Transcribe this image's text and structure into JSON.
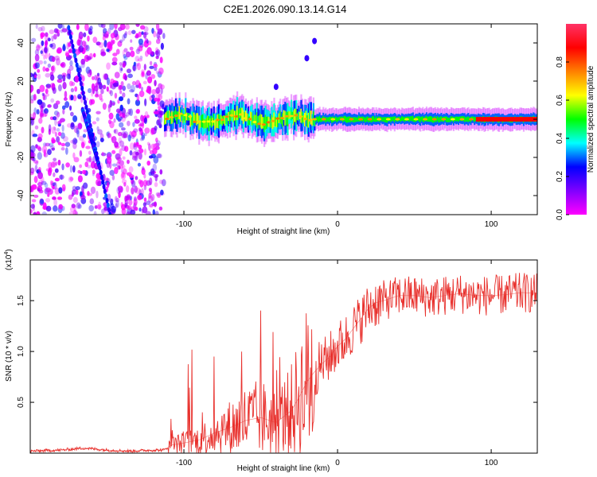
{
  "title": "C2E1.2026.090.13.14.G14",
  "colors": {
    "snr_line": "#e8302c",
    "spectrogram_background": "#ffffff"
  },
  "chart_data": [
    {
      "type": "heatmap",
      "name": "spectrogram",
      "xlabel": "Height of straight line (km)",
      "ylabel": "Frequency (Hz)",
      "xlim": [
        -200,
        130
      ],
      "ylim": [
        -50,
        50
      ],
      "xticks": [
        -100,
        0,
        100
      ],
      "yticks": [
        -40,
        -20,
        0,
        20,
        40
      ],
      "colorbar": {
        "label": "Normalized spectral amplitude",
        "range": [
          0.0,
          1.0
        ],
        "ticks": [
          0.0,
          0.2,
          0.4,
          0.6,
          0.8
        ],
        "tick_labels": [
          "0.0",
          "0.2",
          "0.4",
          "0.6",
          "0.8"
        ],
        "colormap": [
          "#ff00ff",
          "#8000ff",
          "#0000ff",
          "#00ffff",
          "#00ff00",
          "#ffff00",
          "#ff8000",
          "#ff0000",
          "#ff3366"
        ]
      },
      "features": {
        "noise_region_x": [
          -200,
          -113
        ],
        "signal_centerline_hz": 0,
        "streaks": [
          {
            "x_start": -175,
            "freq_start": 48,
            "x_end": -148,
            "freq_end": -50
          },
          {
            "x_start": -166,
            "freq_start": 5,
            "x_end": -155,
            "freq_end": -25
          }
        ],
        "isolated_spots": [
          {
            "x": -40,
            "freq": 17
          },
          {
            "x": -15,
            "freq": 41
          },
          {
            "x": -20,
            "freq": 32
          }
        ]
      }
    },
    {
      "type": "line",
      "name": "snr",
      "xlabel": "Height of straight line (km)",
      "ylabel": "SNR (10 * v/v)",
      "y_multiplier": "(x10",
      "y_multiplier_exp": "4",
      "y_multiplier_close": ")",
      "xlim": [
        -200,
        130
      ],
      "ylim": [
        0,
        1.9
      ],
      "xticks": [
        -100,
        0,
        100
      ],
      "yticks": [
        0.5,
        1.0,
        1.5
      ],
      "series": [
        {
          "name": "SNR",
          "x": [
            -200,
            -180,
            -165,
            -150,
            -135,
            -120,
            -113,
            -108,
            -100,
            -90,
            -80,
            -70,
            -60,
            -50,
            -40,
            -30,
            -25,
            -20,
            -15,
            -10,
            -5,
            0,
            5,
            10,
            15,
            20,
            25,
            30,
            40,
            50,
            60,
            70,
            80,
            90,
            100,
            110,
            120,
            130
          ],
          "values": [
            0.02,
            0.03,
            0.05,
            0.03,
            0.02,
            0.03,
            0.03,
            0.08,
            0.1,
            0.13,
            0.2,
            0.25,
            0.32,
            0.35,
            0.3,
            0.42,
            0.55,
            0.7,
            0.8,
            0.88,
            0.95,
            1.05,
            1.12,
            1.22,
            1.32,
            1.42,
            1.48,
            1.5,
            1.55,
            1.55,
            1.53,
            1.55,
            1.57,
            1.55,
            1.55,
            1.56,
            1.58,
            1.57
          ]
        }
      ]
    }
  ]
}
